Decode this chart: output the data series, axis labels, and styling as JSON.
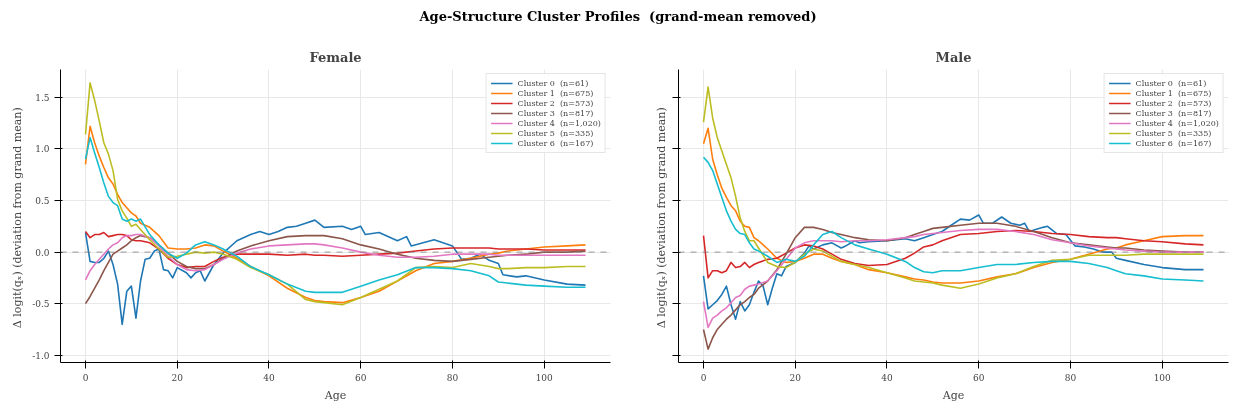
{
  "chart_data": [
    {
      "type": "line",
      "title": "Female",
      "xlabel": "Age",
      "ylabel": "Δ logit(qₓ)  (deviation from grand mean)",
      "annotations": [
        "Age-Structure Cluster Profiles  (grand-mean removed)"
      ],
      "xlim": [
        -5.45,
        114.45
      ],
      "xticks": [
        0,
        20,
        40,
        60,
        80,
        100
      ],
      "ylim": [
        -1.07,
        1.77
      ],
      "yticks": [
        {
          "value": -1,
          "label": "-1.0"
        },
        {
          "value": -0.5,
          "label": "-0.5"
        },
        {
          "value": 0,
          "label": "0.0"
        },
        {
          "value": 0.5,
          "label": "0.5"
        },
        {
          "value": 1,
          "label": "1.0"
        },
        {
          "value": 1.5,
          "label": "1.5"
        }
      ],
      "grid": true,
      "legend": "top right",
      "line_style": "solid",
      "ref_lines": [
        {
          "axis": "y",
          "value": 0,
          "label": null,
          "color": "#808080",
          "line_style": "dashed"
        }
      ],
      "series": [
        {
          "name": "Cluster 0  (n=61)",
          "color": "#1f77b4",
          "x": [
            0,
            1,
            2,
            3,
            4,
            5,
            6,
            7,
            8,
            9,
            10,
            11,
            12,
            13,
            14,
            15,
            16,
            17,
            18,
            19,
            20,
            22,
            23,
            24,
            25,
            26,
            28,
            30,
            33,
            36,
            38,
            40,
            42,
            44,
            46,
            48,
            50,
            52,
            56,
            58,
            60,
            61,
            64,
            68,
            70,
            71,
            76,
            80,
            82,
            84,
            86,
            88,
            90,
            91,
            94,
            96,
            100,
            105,
            109
          ],
          "values": [
            0.19,
            -0.09,
            -0.1,
            -0.1,
            -0.06,
            0.01,
            -0.12,
            -0.31,
            -0.7,
            -0.38,
            -0.33,
            -0.64,
            -0.28,
            -0.07,
            -0.06,
            0.01,
            0.03,
            -0.17,
            -0.18,
            -0.25,
            -0.15,
            -0.2,
            -0.25,
            -0.2,
            -0.18,
            -0.28,
            -0.12,
            -0.01,
            0.11,
            0.17,
            0.2,
            0.17,
            0.2,
            0.24,
            0.25,
            0.28,
            0.31,
            0.24,
            0.25,
            0.22,
            0.25,
            0.17,
            0.19,
            0.11,
            0.15,
            0.06,
            0.12,
            0.06,
            -0.07,
            -0.06,
            -0.02,
            -0.08,
            -0.11,
            -0.22,
            -0.24,
            -0.23,
            -0.27,
            -0.31,
            -0.32
          ]
        },
        {
          "name": "Cluster 1  (n=675)",
          "color": "#ff7f0e",
          "x": [
            0,
            1,
            2,
            3,
            4,
            5,
            6,
            7,
            8,
            9,
            10,
            11,
            12,
            14,
            16,
            18,
            20,
            22,
            24,
            26,
            28,
            30,
            33,
            36,
            40,
            44,
            48,
            50,
            52,
            56,
            60,
            64,
            68,
            72,
            76,
            80,
            84,
            88,
            90,
            92,
            96,
            100,
            105,
            109
          ],
          "values": [
            0.85,
            1.22,
            1.06,
            0.93,
            0.82,
            0.72,
            0.66,
            0.56,
            0.48,
            0.43,
            0.38,
            0.35,
            0.28,
            0.24,
            0.16,
            0.04,
            0.03,
            0.03,
            0.04,
            0.07,
            0.06,
            0.01,
            -0.06,
            -0.14,
            -0.23,
            -0.35,
            -0.44,
            -0.47,
            -0.48,
            -0.49,
            -0.44,
            -0.38,
            -0.28,
            -0.18,
            -0.11,
            -0.09,
            -0.06,
            -0.02,
            -0.01,
            0.01,
            0.03,
            0.05,
            0.06,
            0.07
          ]
        },
        {
          "name": "Cluster 2  (n=573)",
          "color": "#d62728",
          "x": [
            0,
            1,
            2,
            3,
            4,
            5,
            6,
            7,
            8,
            9,
            10,
            11,
            12,
            14,
            16,
            18,
            20,
            22,
            24,
            26,
            28,
            30,
            33,
            36,
            40,
            44,
            48,
            50,
            52,
            56,
            60,
            64,
            68,
            72,
            76,
            80,
            84,
            88,
            90,
            92,
            96,
            100,
            105,
            109
          ],
          "values": [
            0.2,
            0.14,
            0.17,
            0.17,
            0.19,
            0.15,
            0.16,
            0.17,
            0.17,
            0.16,
            0.12,
            0.11,
            0.11,
            0.09,
            0.03,
            -0.06,
            -0.12,
            -0.15,
            -0.14,
            -0.14,
            -0.09,
            -0.05,
            -0.02,
            -0.02,
            -0.02,
            -0.03,
            -0.02,
            -0.03,
            -0.03,
            -0.04,
            -0.03,
            -0.02,
            -0.01,
            0.01,
            0.03,
            0.04,
            0.04,
            0.04,
            0.03,
            0.03,
            0.03,
            0.02,
            0.02,
            0.02
          ]
        },
        {
          "name": "Cluster 3  (n=817)",
          "color": "#8c564b",
          "x": [
            0,
            1,
            2,
            3,
            4,
            5,
            6,
            7,
            8,
            9,
            10,
            11,
            12,
            14,
            16,
            18,
            20,
            22,
            24,
            26,
            28,
            30,
            33,
            36,
            40,
            44,
            48,
            50,
            52,
            56,
            60,
            64,
            68,
            72,
            76,
            80,
            84,
            88,
            90,
            92,
            96,
            100,
            105,
            109
          ],
          "values": [
            -0.5,
            -0.43,
            -0.35,
            -0.27,
            -0.18,
            -0.1,
            -0.02,
            0.01,
            0.04,
            0.07,
            0.11,
            0.14,
            0.16,
            0.14,
            0.07,
            -0.01,
            -0.09,
            -0.14,
            -0.16,
            -0.16,
            -0.12,
            -0.06,
            0.01,
            0.06,
            0.11,
            0.15,
            0.16,
            0.16,
            0.16,
            0.13,
            0.07,
            0.03,
            -0.02,
            -0.06,
            -0.08,
            -0.09,
            -0.07,
            -0.05,
            -0.04,
            -0.03,
            -0.02,
            0,
            0,
            0.01
          ]
        },
        {
          "name": "Cluster 4  (n=1,020)",
          "color": "#e377c2",
          "x": [
            0,
            1,
            2,
            3,
            4,
            5,
            6,
            7,
            8,
            9,
            10,
            11,
            12,
            14,
            16,
            18,
            20,
            22,
            24,
            26,
            28,
            30,
            33,
            36,
            40,
            44,
            48,
            50,
            52,
            56,
            60,
            64,
            68,
            72,
            76,
            80,
            84,
            88,
            90,
            92,
            96,
            100,
            105,
            109
          ],
          "values": [
            -0.27,
            -0.18,
            -0.12,
            -0.07,
            -0.02,
            0.03,
            0.07,
            0.09,
            0.14,
            0.16,
            0.16,
            0.17,
            0.17,
            0.14,
            0.06,
            -0.04,
            -0.12,
            -0.17,
            -0.18,
            -0.17,
            -0.12,
            -0.07,
            -0.01,
            0.03,
            0.06,
            0.07,
            0.08,
            0.08,
            0.07,
            0.04,
            0,
            -0.03,
            -0.05,
            -0.05,
            -0.04,
            -0.02,
            -0.02,
            -0.02,
            -0.03,
            -0.03,
            -0.03,
            -0.03,
            -0.03,
            -0.03
          ]
        },
        {
          "name": "Cluster 5  (n=335)",
          "color": "#bcbd22",
          "x": [
            0,
            1,
            2,
            3,
            4,
            5,
            6,
            7,
            8,
            9,
            10,
            11,
            12,
            14,
            16,
            18,
            20,
            22,
            24,
            26,
            28,
            30,
            33,
            36,
            40,
            44,
            48,
            50,
            52,
            56,
            60,
            64,
            68,
            72,
            76,
            80,
            84,
            88,
            90,
            92,
            96,
            100,
            105,
            109
          ],
          "values": [
            1.14,
            1.64,
            1.47,
            1.27,
            1.06,
            0.95,
            0.79,
            0.51,
            0.4,
            0.33,
            0.25,
            0.27,
            0.22,
            0.12,
            0.03,
            -0.05,
            -0.04,
            -0.02,
            0,
            -0.01,
            0,
            -0.02,
            -0.07,
            -0.15,
            -0.22,
            -0.31,
            -0.46,
            -0.48,
            -0.49,
            -0.51,
            -0.44,
            -0.36,
            -0.28,
            -0.15,
            -0.14,
            -0.15,
            -0.11,
            -0.14,
            -0.16,
            -0.16,
            -0.15,
            -0.15,
            -0.14,
            -0.14
          ]
        },
        {
          "name": "Cluster 6  (n=167)",
          "color": "#17becf",
          "x": [
            0,
            1,
            2,
            3,
            4,
            5,
            6,
            7,
            8,
            9,
            10,
            11,
            12,
            14,
            16,
            18,
            20,
            22,
            24,
            26,
            28,
            30,
            33,
            36,
            40,
            44,
            48,
            50,
            52,
            56,
            60,
            64,
            68,
            72,
            76,
            80,
            84,
            88,
            90,
            92,
            96,
            100,
            105,
            109
          ],
          "values": [
            0.9,
            1.11,
            0.96,
            0.82,
            0.67,
            0.54,
            0.48,
            0.45,
            0.32,
            0.3,
            0.32,
            0.3,
            0.32,
            0.17,
            0.07,
            -0.01,
            -0.06,
            -0.01,
            0.07,
            0.1,
            0.07,
            0.03,
            -0.04,
            -0.14,
            -0.22,
            -0.31,
            -0.38,
            -0.39,
            -0.39,
            -0.39,
            -0.33,
            -0.27,
            -0.22,
            -0.15,
            -0.15,
            -0.16,
            -0.18,
            -0.23,
            -0.29,
            -0.3,
            -0.32,
            -0.33,
            -0.34,
            -0.34
          ]
        }
      ]
    },
    {
      "type": "line",
      "title": "Male",
      "xlabel": "Age",
      "ylabel": "Δ logit(qₓ)  (deviation from grand mean)",
      "xlim": [
        -5.45,
        114.45
      ],
      "xticks": [
        0,
        20,
        40,
        60,
        80,
        100
      ],
      "ylim": [
        -1.07,
        1.77
      ],
      "yticks": [
        {
          "value": -1,
          "label": null
        },
        {
          "value": -0.5,
          "label": null
        },
        {
          "value": 0,
          "label": null
        },
        {
          "value": 0.5,
          "label": null
        },
        {
          "value": 1,
          "label": null
        },
        {
          "value": 1.5,
          "label": null
        }
      ],
      "tick_labels": "x",
      "grid": true,
      "legend": "top right",
      "line_style": "solid",
      "ref_lines": [
        {
          "axis": "y",
          "value": 0,
          "label": null,
          "color": "#808080",
          "line_style": "dashed"
        }
      ],
      "series": [
        {
          "name": "Cluster 0  (n=61)",
          "color": "#1f77b4",
          "x": [
            0,
            1,
            2,
            3,
            4,
            5,
            6,
            7,
            8,
            9,
            10,
            11,
            12,
            13,
            14,
            15,
            16,
            17,
            18,
            20,
            22,
            23,
            24,
            26,
            28,
            30,
            31,
            33,
            34,
            36,
            40,
            42,
            44,
            46,
            48,
            50,
            52,
            54,
            56,
            58,
            60,
            61,
            63,
            65,
            67,
            69,
            70,
            71,
            74,
            75,
            77,
            79,
            81,
            83,
            85,
            87,
            89,
            90,
            92,
            96,
            100,
            105,
            109
          ],
          "values": [
            -0.23,
            -0.55,
            -0.51,
            -0.47,
            -0.41,
            -0.33,
            -0.51,
            -0.65,
            -0.48,
            -0.57,
            -0.51,
            -0.39,
            -0.28,
            -0.33,
            -0.51,
            -0.35,
            -0.21,
            -0.23,
            -0.14,
            -0.1,
            -0.01,
            0.06,
            0.03,
            0.07,
            0.09,
            0.04,
            0.06,
            0.11,
            0.09,
            0.1,
            0.11,
            0.12,
            0.13,
            0.11,
            0.14,
            0.17,
            0.2,
            0.26,
            0.32,
            0.31,
            0.36,
            0.28,
            0.28,
            0.34,
            0.28,
            0.26,
            0.28,
            0.2,
            0.24,
            0.25,
            0.18,
            0.17,
            0.06,
            0.05,
            0.03,
            0,
            0,
            -0.06,
            -0.08,
            -0.12,
            -0.15,
            -0.17,
            -0.17
          ]
        },
        {
          "name": "Cluster 1  (n=675)",
          "color": "#ff7f0e",
          "x": [
            0,
            1,
            2,
            3,
            4,
            5,
            6,
            7,
            8,
            9,
            10,
            11,
            12,
            14,
            16,
            18,
            20,
            22,
            24,
            26,
            28,
            30,
            33,
            36,
            40,
            44,
            46,
            48,
            50,
            52,
            56,
            60,
            64,
            68,
            72,
            76,
            80,
            84,
            88,
            90,
            92,
            96,
            100,
            105,
            109
          ],
          "values": [
            1.05,
            1.2,
            0.9,
            0.75,
            0.62,
            0.53,
            0.45,
            0.4,
            0.3,
            0.25,
            0.24,
            0.14,
            0.11,
            0.03,
            -0.06,
            -0.1,
            -0.09,
            -0.06,
            -0.02,
            -0.02,
            -0.06,
            -0.09,
            -0.12,
            -0.17,
            -0.2,
            -0.24,
            -0.26,
            -0.27,
            -0.29,
            -0.3,
            -0.3,
            -0.28,
            -0.24,
            -0.21,
            -0.15,
            -0.1,
            -0.07,
            -0.02,
            0.03,
            0.04,
            0.07,
            0.11,
            0.15,
            0.16,
            0.16
          ]
        },
        {
          "name": "Cluster 2  (n=573)",
          "color": "#d62728",
          "x": [
            0,
            1,
            2,
            3,
            4,
            5,
            6,
            7,
            8,
            9,
            10,
            11,
            12,
            14,
            16,
            18,
            20,
            22,
            24,
            26,
            28,
            30,
            33,
            36,
            40,
            44,
            46,
            48,
            50,
            52,
            56,
            60,
            64,
            68,
            72,
            76,
            80,
            84,
            88,
            90,
            92,
            96,
            100,
            105,
            109
          ],
          "values": [
            0.16,
            -0.25,
            -0.18,
            -0.18,
            -0.2,
            -0.18,
            -0.1,
            -0.15,
            -0.14,
            -0.1,
            -0.15,
            -0.12,
            -0.1,
            -0.07,
            -0.06,
            -0.01,
            0.04,
            0.07,
            0.06,
            0.03,
            -0.02,
            -0.07,
            -0.11,
            -0.13,
            -0.12,
            -0.06,
            -0.01,
            0.05,
            0.07,
            0.11,
            0.17,
            0.18,
            0.2,
            0.21,
            0.2,
            0.18,
            0.17,
            0.15,
            0.14,
            0.14,
            0.13,
            0.11,
            0.1,
            0.08,
            0.07
          ]
        },
        {
          "name": "Cluster 3  (n=817)",
          "color": "#8c564b",
          "x": [
            0,
            1,
            2,
            3,
            4,
            5,
            6,
            7,
            8,
            9,
            10,
            11,
            12,
            14,
            16,
            18,
            20,
            22,
            24,
            26,
            28,
            30,
            33,
            36,
            40,
            44,
            46,
            48,
            50,
            52,
            56,
            60,
            64,
            68,
            72,
            76,
            80,
            84,
            88,
            90,
            92,
            96,
            100,
            105,
            109
          ],
          "values": [
            -0.75,
            -0.94,
            -0.83,
            -0.75,
            -0.7,
            -0.65,
            -0.61,
            -0.56,
            -0.51,
            -0.48,
            -0.44,
            -0.41,
            -0.35,
            -0.28,
            -0.17,
            -0.02,
            0.14,
            0.24,
            0.24,
            0.22,
            0.19,
            0.17,
            0.14,
            0.12,
            0.11,
            0.14,
            0.17,
            0.2,
            0.23,
            0.24,
            0.26,
            0.28,
            0.28,
            0.25,
            0.2,
            0.14,
            0.09,
            0.07,
            0.05,
            0.04,
            0.04,
            0.02,
            0.01,
            0,
            0
          ]
        },
        {
          "name": "Cluster 4  (n=1,020)",
          "color": "#e377c2",
          "x": [
            0,
            1,
            2,
            3,
            4,
            5,
            6,
            7,
            8,
            9,
            10,
            11,
            12,
            14,
            16,
            18,
            20,
            22,
            24,
            26,
            28,
            30,
            33,
            36,
            40,
            44,
            46,
            48,
            50,
            52,
            56,
            60,
            64,
            68,
            72,
            76,
            80,
            84,
            88,
            90,
            92,
            96,
            100,
            105,
            109
          ],
          "values": [
            -0.48,
            -0.73,
            -0.64,
            -0.61,
            -0.57,
            -0.54,
            -0.49,
            -0.44,
            -0.42,
            -0.36,
            -0.33,
            -0.32,
            -0.31,
            -0.28,
            -0.18,
            -0.07,
            0.04,
            0.09,
            0.11,
            0.11,
            0.11,
            0.1,
            0.11,
            0.11,
            0.12,
            0.14,
            0.15,
            0.17,
            0.18,
            0.19,
            0.21,
            0.22,
            0.22,
            0.2,
            0.17,
            0.12,
            0.09,
            0.06,
            0.04,
            0.03,
            0.02,
            0.01,
            0,
            0,
            0
          ]
        },
        {
          "name": "Cluster 5  (n=335)",
          "color": "#bcbd22",
          "x": [
            0,
            1,
            2,
            3,
            4,
            5,
            6,
            7,
            8,
            9,
            10,
            11,
            12,
            14,
            16,
            18,
            20,
            22,
            24,
            26,
            28,
            30,
            33,
            36,
            40,
            44,
            46,
            48,
            50,
            52,
            56,
            60,
            64,
            68,
            72,
            76,
            80,
            84,
            88,
            90,
            92,
            96,
            100,
            105,
            109
          ],
          "values": [
            1.26,
            1.6,
            1.3,
            1.11,
            0.98,
            0.85,
            0.72,
            0.54,
            0.33,
            0.2,
            0.11,
            0.11,
            0.04,
            -0.1,
            -0.14,
            -0.15,
            -0.1,
            -0.02,
            0.03,
            0.01,
            -0.04,
            -0.09,
            -0.12,
            -0.15,
            -0.2,
            -0.25,
            -0.28,
            -0.29,
            -0.3,
            -0.32,
            -0.35,
            -0.31,
            -0.25,
            -0.21,
            -0.14,
            -0.08,
            -0.07,
            -0.03,
            -0.03,
            -0.03,
            -0.03,
            -0.02,
            -0.02,
            -0.02,
            -0.02
          ]
        },
        {
          "name": "Cluster 6  (n=167)",
          "color": "#17becf",
          "x": [
            0,
            1,
            2,
            3,
            4,
            5,
            6,
            7,
            8,
            9,
            10,
            11,
            12,
            14,
            16,
            18,
            20,
            22,
            24,
            26,
            28,
            30,
            33,
            36,
            40,
            44,
            46,
            48,
            50,
            52,
            56,
            60,
            64,
            68,
            72,
            76,
            80,
            84,
            88,
            90,
            92,
            96,
            100,
            105,
            109
          ],
          "values": [
            0.92,
            0.87,
            0.79,
            0.66,
            0.53,
            0.4,
            0.3,
            0.22,
            0.18,
            0.17,
            0.09,
            0.03,
            0.01,
            -0.04,
            -0.1,
            -0.07,
            -0.09,
            -0.04,
            0.07,
            0.17,
            0.2,
            0.14,
            0.07,
            0.03,
            -0.02,
            -0.09,
            -0.15,
            -0.19,
            -0.2,
            -0.18,
            -0.18,
            -0.15,
            -0.12,
            -0.12,
            -0.1,
            -0.09,
            -0.09,
            -0.11,
            -0.15,
            -0.18,
            -0.21,
            -0.23,
            -0.26,
            -0.27,
            -0.28
          ]
        }
      ]
    }
  ]
}
